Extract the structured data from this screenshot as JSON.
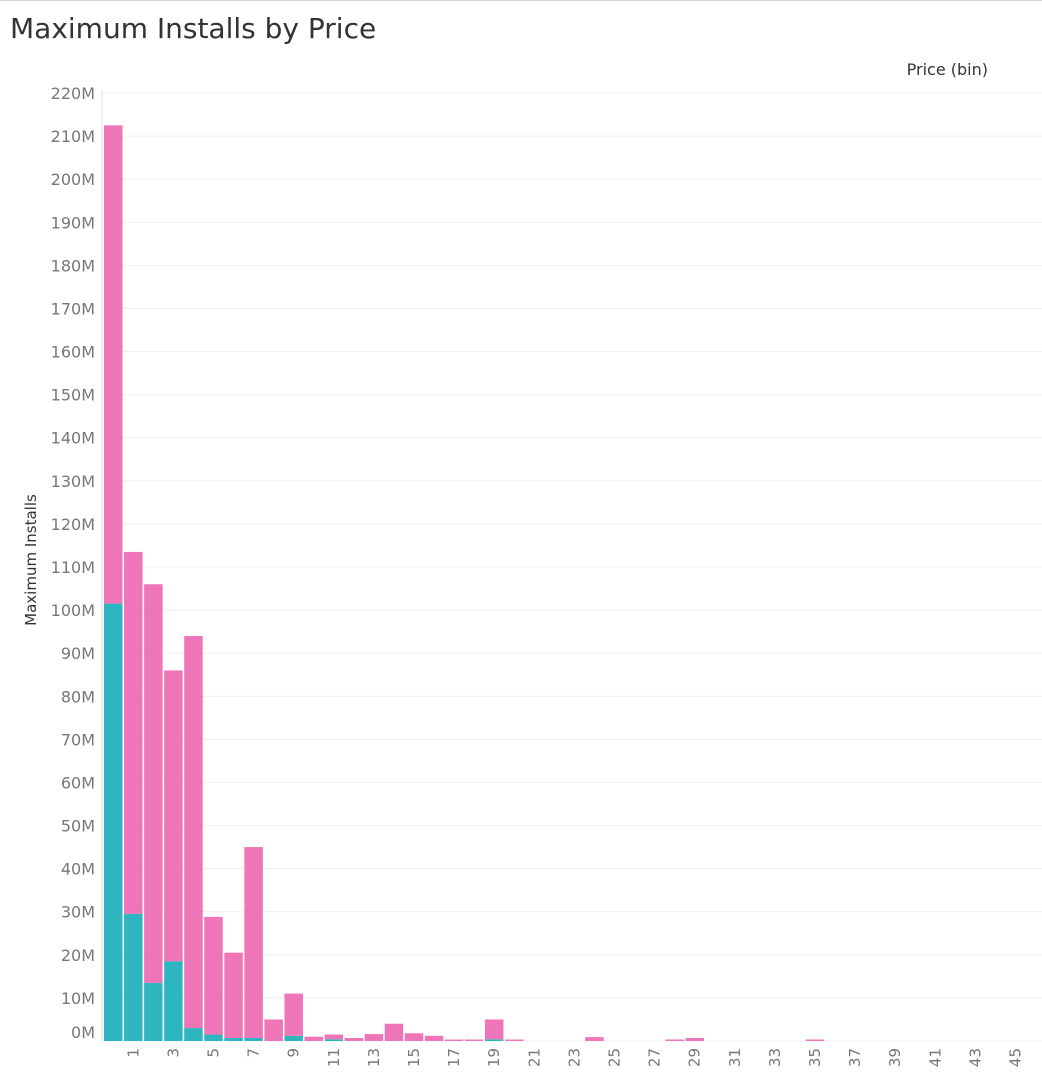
{
  "header": {
    "title": "Maximum Installs by Price",
    "column_label": "Price (bin)"
  },
  "chart_data": {
    "type": "bar",
    "stacked": true,
    "title": "Maximum Installs by Price",
    "xlabel": "",
    "ylabel": "Maximum Installs",
    "column_header": "Price (bin)",
    "ylim": [
      0,
      220000000
    ],
    "y_ticks": [
      "0M",
      "10M",
      "20M",
      "30M",
      "40M",
      "50M",
      "60M",
      "70M",
      "80M",
      "90M",
      "100M",
      "110M",
      "120M",
      "130M",
      "140M",
      "150M",
      "160M",
      "170M",
      "180M",
      "190M",
      "200M",
      "210M",
      "220M"
    ],
    "x_tick_labels": [
      "1",
      "3",
      "5",
      "7",
      "9",
      "11",
      "13",
      "15",
      "17",
      "19",
      "21",
      "23",
      "25",
      "27",
      "29",
      "31",
      "33",
      "35",
      "37",
      "39",
      "41",
      "43",
      "45"
    ],
    "grid": true,
    "legend": "none",
    "colors": {
      "teal": "#2eb6c0",
      "pink": "#ee76b8",
      "gridline": "#efefef"
    },
    "categories": [
      0,
      1,
      2,
      3,
      4,
      5,
      6,
      7,
      8,
      9,
      10,
      11,
      12,
      13,
      14,
      15,
      16,
      17,
      18,
      19,
      20,
      21,
      22,
      23,
      24,
      25,
      26,
      27,
      28,
      29,
      30,
      31,
      32,
      33,
      34,
      35,
      36,
      37,
      38,
      39,
      40,
      41,
      42,
      43,
      44,
      45,
      46
    ],
    "series": [
      {
        "color": "#2eb6c0",
        "values": [
          101500000,
          29500000,
          13500000,
          18500000,
          3000000,
          1500000,
          700000,
          700000,
          0,
          1200000,
          0,
          400000,
          0,
          0,
          0,
          0,
          0,
          0,
          0,
          400000,
          0,
          0,
          0,
          0,
          0,
          0,
          0,
          0,
          0,
          0,
          0,
          0,
          0,
          0,
          0,
          0,
          0,
          0,
          0,
          0,
          0,
          0,
          0,
          0,
          0,
          0,
          0
        ]
      },
      {
        "color": "#ee76b8",
        "values": [
          111000000,
          84000000,
          92500000,
          67500000,
          91000000,
          27300000,
          19800000,
          44300000,
          5000000,
          9800000,
          1000000,
          1100000,
          700000,
          1600000,
          4000000,
          1800000,
          1200000,
          200000,
          200000,
          4600000,
          200000,
          0,
          0,
          0,
          900000,
          0,
          0,
          0,
          200000,
          700000,
          0,
          0,
          0,
          0,
          0,
          200000,
          0,
          0,
          0,
          0,
          0,
          0,
          0,
          0,
          0,
          0,
          0
        ]
      }
    ]
  }
}
